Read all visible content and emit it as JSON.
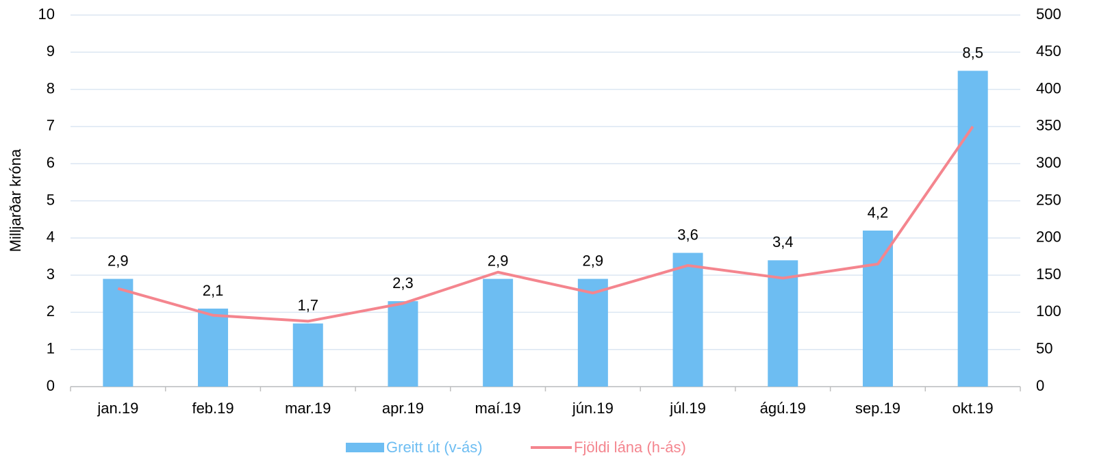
{
  "chart_data": {
    "type": "bar",
    "y_label": "Milljarðar króna",
    "categories": [
      "jan.19",
      "feb.19",
      "mar.19",
      "apr.19",
      "maí.19",
      "jún.19",
      "júl.19",
      "ágú.19",
      "sep.19",
      "okt.19"
    ],
    "series": [
      {
        "name": "Greitt út (v-ás)",
        "color": "#6dbdf2",
        "type": "bar",
        "values": [
          2.9,
          2.1,
          1.7,
          2.3,
          2.9,
          2.9,
          3.6,
          3.4,
          4.2,
          8.5
        ],
        "value_labels": [
          "2,9",
          "2,1",
          "1,7",
          "2,3",
          "2,9",
          "2,9",
          "3,6",
          "3,4",
          "4,2",
          "8,5"
        ]
      },
      {
        "name": "Fjöldi lána (h-ás)",
        "color": "#f4858e",
        "type": "line",
        "axis": "y2",
        "values": [
          132,
          96,
          88,
          112,
          154,
          126,
          163,
          146,
          165,
          350
        ]
      }
    ],
    "ylim": [
      0,
      10
    ],
    "yticks": [
      0,
      1,
      2,
      3,
      4,
      5,
      6,
      7,
      8,
      9,
      10
    ],
    "y2lim": [
      0,
      500
    ],
    "y2ticks": [
      0,
      50,
      100,
      150,
      200,
      250,
      300,
      350,
      400,
      450,
      500
    ],
    "grid": true
  }
}
